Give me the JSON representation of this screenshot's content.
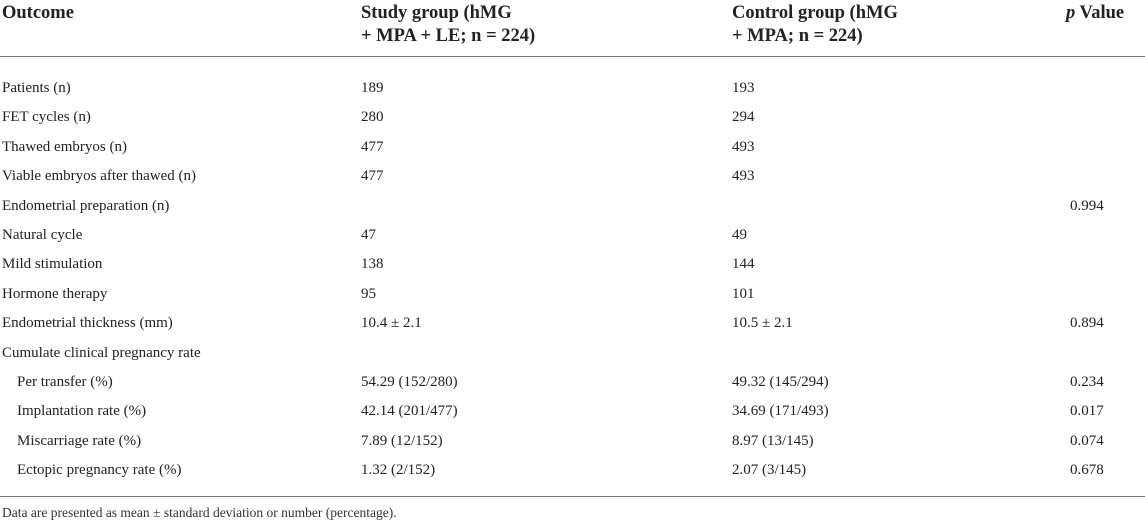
{
  "header": {
    "outcome": "Outcome",
    "study_line1": "Study group (hMG",
    "study_line2": "+ MPA + LE; n = 224)",
    "control_line1": "Control group (hMG",
    "control_line2": "+ MPA; n = 224)",
    "p_italic": "p",
    "p_rest": " Value"
  },
  "rows": [
    {
      "label": "Patients (n)",
      "study": "189",
      "control": "193",
      "p": ""
    },
    {
      "label": "FET cycles (n)",
      "study": "280",
      "control": "294",
      "p": ""
    },
    {
      "label": "Thawed embryos (n)",
      "study": "477",
      "control": "493",
      "p": ""
    },
    {
      "label": "Viable embryos after thawed (n)",
      "study": "477",
      "control": "493",
      "p": ""
    },
    {
      "label": "Endometrial preparation (n)",
      "study": "",
      "control": "",
      "p": "0.994"
    },
    {
      "label": "Natural cycle",
      "study": "47",
      "control": "49",
      "p": ""
    },
    {
      "label": "Mild stimulation",
      "study": "138",
      "control": "144",
      "p": ""
    },
    {
      "label": "Hormone therapy",
      "study": "95",
      "control": "101",
      "p": ""
    },
    {
      "label": "Endometrial thickness (mm)",
      "study": "10.4 ± 2.1",
      "control": "10.5 ± 2.1",
      "p": "0.894"
    },
    {
      "label": "Cumulate clinical pregnancy rate",
      "study": "",
      "control": "",
      "p": ""
    },
    {
      "label": "Per transfer (%)",
      "study": "54.29 (152/280)",
      "control": "49.32 (145/294)",
      "p": "0.234"
    },
    {
      "label": "Implantation rate (%)",
      "study": "42.14 (201/477)",
      "control": "34.69 (171/493)",
      "p": "0.017"
    },
    {
      "label": "Miscarriage rate (%)",
      "study": "7.89 (12/152)",
      "control": "8.97 (13/145)",
      "p": "0.074"
    },
    {
      "label": "Ectopic pregnancy rate (%)",
      "study": "1.32 (2/152)",
      "control": "2.07 (3/145)",
      "p": "0.678"
    }
  ],
  "footnote": "Data are presented as mean ± standard deviation or number (percentage)."
}
